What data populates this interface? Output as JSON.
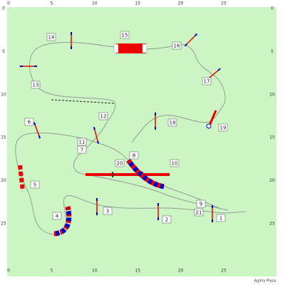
{
  "axes": {
    "top": [
      "0",
      "5",
      "10",
      "15",
      "20",
      "25"
    ],
    "bottom": [
      "0",
      "5",
      "10",
      "15",
      "20",
      "25"
    ],
    "left": [
      "0",
      "5",
      "10",
      "15",
      "20",
      "25"
    ],
    "right": [
      "0",
      "5",
      "10",
      "15",
      "20",
      "25"
    ]
  },
  "obstacles": [
    "1",
    "2",
    "3",
    "4",
    "5",
    "6",
    "7",
    "8",
    "9",
    "10",
    "11",
    "12",
    "13",
    "14",
    "15",
    "16",
    "17",
    "18",
    "19",
    "20",
    "21"
  ],
  "footer": "Agility Plaza"
}
